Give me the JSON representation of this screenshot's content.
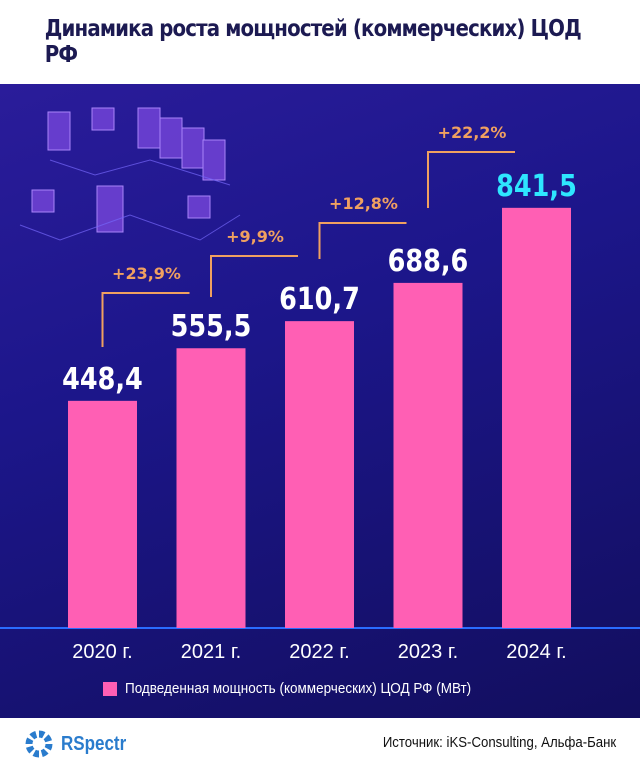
{
  "title": "Динамика роста мощностей (коммерческих) ЦОД РФ",
  "chart_data": {
    "type": "bar",
    "title": "Динамика роста мощностей (коммерческих) ЦОД РФ",
    "categories": [
      "2020 г.",
      "2021 г.",
      "2022 г.",
      "2023 г.",
      "2024 г."
    ],
    "values": [
      448.4,
      555.5,
      610.7,
      688.6,
      841.5
    ],
    "value_labels": [
      "448,4",
      "555,5",
      "610,7",
      "688,6",
      "841,5"
    ],
    "growth_labels": [
      "+23,9%",
      "+9,9%",
      "+12,8%",
      "+22,2%"
    ],
    "series_name": "Подведенная мощность (коммерческих) ЦОД РФ (МВт)",
    "legend_position": "bottom",
    "grid": false,
    "colors": {
      "bar": "#ff5fb4",
      "label": "#ffffff",
      "highlight_label": "#2ee6ff",
      "growth": "#f0a060",
      "axis": "#2a6cff"
    }
  },
  "footer": {
    "logo": "RSpectr",
    "source": "Источник: iKS-Consulting, Альфа-Банк"
  }
}
